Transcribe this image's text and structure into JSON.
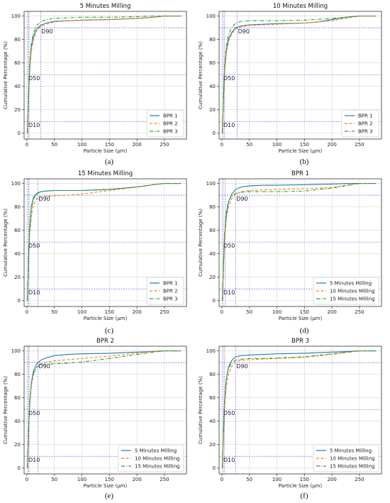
{
  "chart_data": [
    {
      "panel": "a",
      "type": "line",
      "title": "5 Minutes Milling",
      "xlabel": "Particle Size (μm)",
      "ylabel": "Cumulative Percentage (%)",
      "xlim": [
        -5,
        290
      ],
      "ylim": [
        -5,
        104
      ],
      "xticks": [
        0,
        50,
        100,
        150,
        200,
        250
      ],
      "yticks": [
        0,
        20,
        40,
        60,
        80,
        100
      ],
      "grid": true,
      "legend_position": "lower right",
      "reference_lines": {
        "horizontal": [
          {
            "y": 90,
            "label": "D90"
          },
          {
            "y": 50,
            "label": "D50"
          },
          {
            "y": 10,
            "label": "D10"
          }
        ],
        "vertical_x": [
          2,
          4,
          25
        ]
      },
      "series": [
        {
          "name": "BPR 1",
          "color": "#1f77b4",
          "dash": "solid",
          "x": [
            1,
            3,
            5,
            8,
            12,
            18,
            25,
            35,
            50,
            75,
            100,
            150,
            200,
            230,
            250,
            280
          ],
          "y": [
            0,
            30,
            55,
            73,
            83,
            89,
            92,
            94,
            95.5,
            96,
            96.5,
            97,
            98,
            99,
            100,
            100
          ]
        },
        {
          "name": "BPR 2",
          "color": "#ff7f0e",
          "dash": "dashed",
          "x": [
            1,
            3,
            5,
            8,
            12,
            18,
            25,
            35,
            50,
            75,
            100,
            150,
            200,
            230,
            250,
            280
          ],
          "y": [
            0,
            28,
            52,
            70,
            80,
            88,
            91,
            93,
            95,
            96,
            96.5,
            97,
            98,
            99,
            100,
            100
          ]
        },
        {
          "name": "BPR 3",
          "color": "#2ca02c",
          "dash": "dashdot",
          "x": [
            1,
            3,
            5,
            8,
            12,
            18,
            25,
            35,
            50,
            75,
            100,
            150,
            200,
            230,
            250,
            280
          ],
          "y": [
            0,
            32,
            58,
            76,
            86,
            92,
            95,
            97,
            98,
            98.5,
            99,
            99,
            99.5,
            100,
            100,
            100
          ]
        }
      ]
    },
    {
      "panel": "b",
      "type": "line",
      "title": "10 Minutes Milling",
      "xlabel": "Particle Size (μm)",
      "ylabel": "Cumulative Percentage (%)",
      "xlim": [
        -5,
        290
      ],
      "ylim": [
        -5,
        104
      ],
      "xticks": [
        0,
        50,
        100,
        150,
        200,
        250
      ],
      "yticks": [
        0,
        20,
        40,
        60,
        80,
        100
      ],
      "grid": true,
      "legend_position": "lower right",
      "reference_lines": {
        "horizontal": [
          {
            "y": 90,
            "label": "D90"
          },
          {
            "y": 50,
            "label": "D50"
          },
          {
            "y": 10,
            "label": "D10"
          }
        ],
        "vertical_x": [
          2,
          5,
          28
        ]
      },
      "series": [
        {
          "name": "BPR 1",
          "color": "#1f77b4",
          "dash": "solid",
          "x": [
            1,
            3,
            5,
            8,
            12,
            18,
            25,
            35,
            50,
            75,
            100,
            150,
            175,
            200,
            225,
            250,
            280
          ],
          "y": [
            0,
            30,
            55,
            70,
            80,
            86,
            90,
            91.5,
            92.5,
            93,
            93.5,
            94,
            95,
            97,
            99,
            100,
            100
          ]
        },
        {
          "name": "BPR 2",
          "color": "#ff7f0e",
          "dash": "dashed",
          "x": [
            1,
            3,
            5,
            8,
            12,
            18,
            25,
            35,
            50,
            75,
            100,
            150,
            200,
            225,
            250,
            280
          ],
          "y": [
            0,
            28,
            52,
            68,
            78,
            85,
            89,
            91,
            92,
            92.5,
            93,
            94,
            96,
            98,
            100,
            100
          ]
        },
        {
          "name": "BPR 3",
          "color": "#2ca02c",
          "dash": "dashdot",
          "x": [
            1,
            3,
            5,
            8,
            12,
            18,
            25,
            35,
            50,
            75,
            100,
            150,
            200,
            225,
            250,
            280
          ],
          "y": [
            0,
            32,
            58,
            74,
            84,
            90,
            94,
            95.5,
            96,
            96,
            96,
            96.5,
            98,
            99,
            100,
            100
          ]
        }
      ]
    },
    {
      "panel": "c",
      "type": "line",
      "title": "15 Minutes Milling",
      "xlabel": "Particle Size (μm)",
      "ylabel": "Cumulative Percentage (%)",
      "xlim": [
        -5,
        290
      ],
      "ylim": [
        -5,
        104
      ],
      "xticks": [
        0,
        50,
        100,
        150,
        200,
        250
      ],
      "yticks": [
        0,
        20,
        40,
        60,
        80,
        100
      ],
      "grid": true,
      "legend_position": "lower right",
      "reference_lines": {
        "horizontal": [
          {
            "y": 90,
            "label": "D90"
          },
          {
            "y": 50,
            "label": "D50"
          },
          {
            "y": 10,
            "label": "D10"
          }
        ],
        "vertical_x": [
          2,
          4,
          20
        ]
      },
      "series": [
        {
          "name": "BPR 1",
          "color": "#1f77b4",
          "dash": "solid",
          "x": [
            1,
            3,
            5,
            8,
            12,
            18,
            25,
            35,
            50,
            75,
            100,
            150,
            200,
            230,
            250,
            280
          ],
          "y": [
            0,
            35,
            62,
            80,
            88,
            91.5,
            93,
            93.5,
            94,
            94,
            94,
            95,
            97,
            99,
            100,
            100
          ]
        },
        {
          "name": "BPR 2",
          "color": "#ff7f0e",
          "dash": "dashed",
          "x": [
            1,
            3,
            5,
            8,
            12,
            18,
            25,
            35,
            50,
            75,
            100,
            150,
            200,
            230,
            250,
            280
          ],
          "y": [
            0,
            30,
            55,
            72,
            82,
            87,
            88.5,
            89,
            89.5,
            90,
            91,
            94,
            97,
            99,
            100,
            100
          ]
        },
        {
          "name": "BPR 3",
          "color": "#2ca02c",
          "dash": "dashdot",
          "x": [
            1,
            3,
            5,
            8,
            12,
            18,
            25,
            35,
            50,
            75,
            100,
            150,
            200,
            230,
            250,
            280
          ],
          "y": [
            0,
            33,
            60,
            78,
            87,
            91,
            93,
            93.5,
            94,
            94,
            94,
            95,
            97,
            99,
            100,
            100
          ]
        }
      ]
    },
    {
      "panel": "d",
      "type": "line",
      "title": "BPR 1",
      "xlabel": "Particle Size (μm)",
      "ylabel": "Cumulative Percentage (%)",
      "xlim": [
        -5,
        290
      ],
      "ylim": [
        -5,
        104
      ],
      "xticks": [
        0,
        50,
        100,
        150,
        200,
        250
      ],
      "yticks": [
        0,
        20,
        40,
        60,
        80,
        100
      ],
      "grid": true,
      "legend_position": "lower right",
      "reference_lines": {
        "horizontal": [
          {
            "y": 90,
            "label": "D90"
          },
          {
            "y": 50,
            "label": "D50"
          },
          {
            "y": 10,
            "label": "D10"
          }
        ],
        "vertical_x": [
          2,
          6,
          25
        ]
      },
      "series": [
        {
          "name": "5 Minutes Milling",
          "color": "#1f77b4",
          "dash": "solid",
          "x": [
            1,
            3,
            5,
            8,
            12,
            18,
            25,
            35,
            50,
            75,
            100,
            150,
            200,
            230,
            250,
            280
          ],
          "y": [
            0,
            30,
            55,
            73,
            84,
            91,
            95,
            97,
            98,
            98.5,
            98.5,
            99,
            99.5,
            100,
            100,
            100
          ]
        },
        {
          "name": "10 Minutes Milling",
          "color": "#ff7f0e",
          "dash": "dashed",
          "x": [
            1,
            3,
            5,
            8,
            12,
            18,
            25,
            35,
            50,
            75,
            100,
            150,
            200,
            225,
            250,
            280
          ],
          "y": [
            0,
            28,
            52,
            70,
            80,
            87,
            91,
            93,
            94,
            94.5,
            95,
            95.5,
            96.5,
            98.5,
            100,
            100
          ]
        },
        {
          "name": "15 Minutes Milling",
          "color": "#2ca02c",
          "dash": "dashdot",
          "x": [
            1,
            3,
            5,
            8,
            12,
            18,
            25,
            35,
            50,
            75,
            100,
            150,
            200,
            230,
            250,
            280
          ],
          "y": [
            0,
            33,
            58,
            76,
            85,
            89.5,
            91.5,
            92.5,
            93,
            93,
            93,
            93.5,
            96,
            98.5,
            100,
            100
          ]
        }
      ]
    },
    {
      "panel": "e",
      "type": "line",
      "title": "BPR 2",
      "xlabel": "Particle Size (μm)",
      "ylabel": "Cumulative Percentage (%)",
      "xlim": [
        -5,
        290
      ],
      "ylim": [
        -5,
        104
      ],
      "xticks": [
        0,
        50,
        100,
        150,
        200,
        250
      ],
      "yticks": [
        0,
        20,
        40,
        60,
        80,
        100
      ],
      "grid": true,
      "legend_position": "lower right",
      "reference_lines": {
        "horizontal": [
          {
            "y": 90,
            "label": "D90"
          },
          {
            "y": 50,
            "label": "D50"
          },
          {
            "y": 10,
            "label": "D10"
          }
        ],
        "vertical_x": [
          2,
          4,
          20
        ]
      },
      "series": [
        {
          "name": "5 Minutes Milling",
          "color": "#1f77b4",
          "dash": "solid",
          "x": [
            1,
            3,
            5,
            8,
            12,
            18,
            25,
            35,
            50,
            75,
            100,
            150,
            200,
            230,
            250,
            280
          ],
          "y": [
            0,
            30,
            55,
            72,
            83,
            89,
            92,
            94,
            96,
            97,
            97.5,
            98,
            99,
            99.5,
            100,
            100
          ]
        },
        {
          "name": "10 Minutes Milling",
          "color": "#ff7f0e",
          "dash": "dashed",
          "x": [
            1,
            3,
            5,
            8,
            12,
            18,
            25,
            35,
            50,
            75,
            100,
            150,
            200,
            230,
            250,
            280
          ],
          "y": [
            0,
            28,
            52,
            70,
            80,
            86,
            89,
            90.5,
            91.5,
            92.5,
            93.5,
            95.5,
            98,
            99.5,
            100,
            100
          ]
        },
        {
          "name": "15 Minutes Milling",
          "color": "#2ca02c",
          "dash": "dashdot",
          "x": [
            1,
            3,
            5,
            8,
            12,
            18,
            25,
            35,
            50,
            75,
            100,
            150,
            200,
            230,
            250,
            280
          ],
          "y": [
            0,
            30,
            55,
            72,
            81,
            86,
            88,
            88.5,
            89,
            89.5,
            90.5,
            93.5,
            97,
            99,
            100,
            100
          ]
        }
      ]
    },
    {
      "panel": "f",
      "type": "line",
      "title": "BPR 3",
      "xlabel": "Particle Size (μm)",
      "ylabel": "Cumulative Percentage (%)",
      "xlim": [
        -5,
        290
      ],
      "ylim": [
        -5,
        104
      ],
      "xticks": [
        0,
        50,
        100,
        150,
        200,
        250
      ],
      "yticks": [
        0,
        20,
        40,
        60,
        80,
        100
      ],
      "grid": true,
      "legend_position": "lower right",
      "reference_lines": {
        "horizontal": [
          {
            "y": 90,
            "label": "D90"
          },
          {
            "y": 50,
            "label": "D50"
          },
          {
            "y": 10,
            "label": "D10"
          }
        ],
        "vertical_x": [
          2,
          5,
          25
        ]
      },
      "series": [
        {
          "name": "5 Minutes Milling",
          "color": "#1f77b4",
          "dash": "solid",
          "x": [
            1,
            3,
            5,
            8,
            12,
            18,
            25,
            35,
            50,
            75,
            100,
            150,
            200,
            230,
            250,
            280
          ],
          "y": [
            0,
            32,
            58,
            76,
            86,
            92,
            95,
            96,
            96.5,
            97,
            97.5,
            98,
            99,
            99.5,
            100,
            100
          ]
        },
        {
          "name": "10 Minutes Milling",
          "color": "#ff7f0e",
          "dash": "dashed",
          "x": [
            1,
            3,
            5,
            8,
            12,
            18,
            25,
            35,
            50,
            75,
            100,
            150,
            200,
            230,
            250,
            280
          ],
          "y": [
            0,
            28,
            52,
            70,
            80,
            87,
            90.5,
            92,
            92.5,
            93,
            93.5,
            94.5,
            97,
            99,
            100,
            100
          ]
        },
        {
          "name": "15 Minutes Milling",
          "color": "#2ca02c",
          "dash": "dashdot",
          "x": [
            1,
            3,
            5,
            8,
            12,
            18,
            25,
            35,
            50,
            75,
            100,
            150,
            200,
            230,
            250,
            280
          ],
          "y": [
            0,
            33,
            58,
            76,
            85,
            90,
            92,
            93,
            93.5,
            93.5,
            94,
            95,
            97.5,
            99,
            100,
            100
          ]
        }
      ]
    }
  ],
  "captions": [
    "(a)",
    "(b)",
    "(c)",
    "(d)",
    "(e)",
    "(f)"
  ]
}
